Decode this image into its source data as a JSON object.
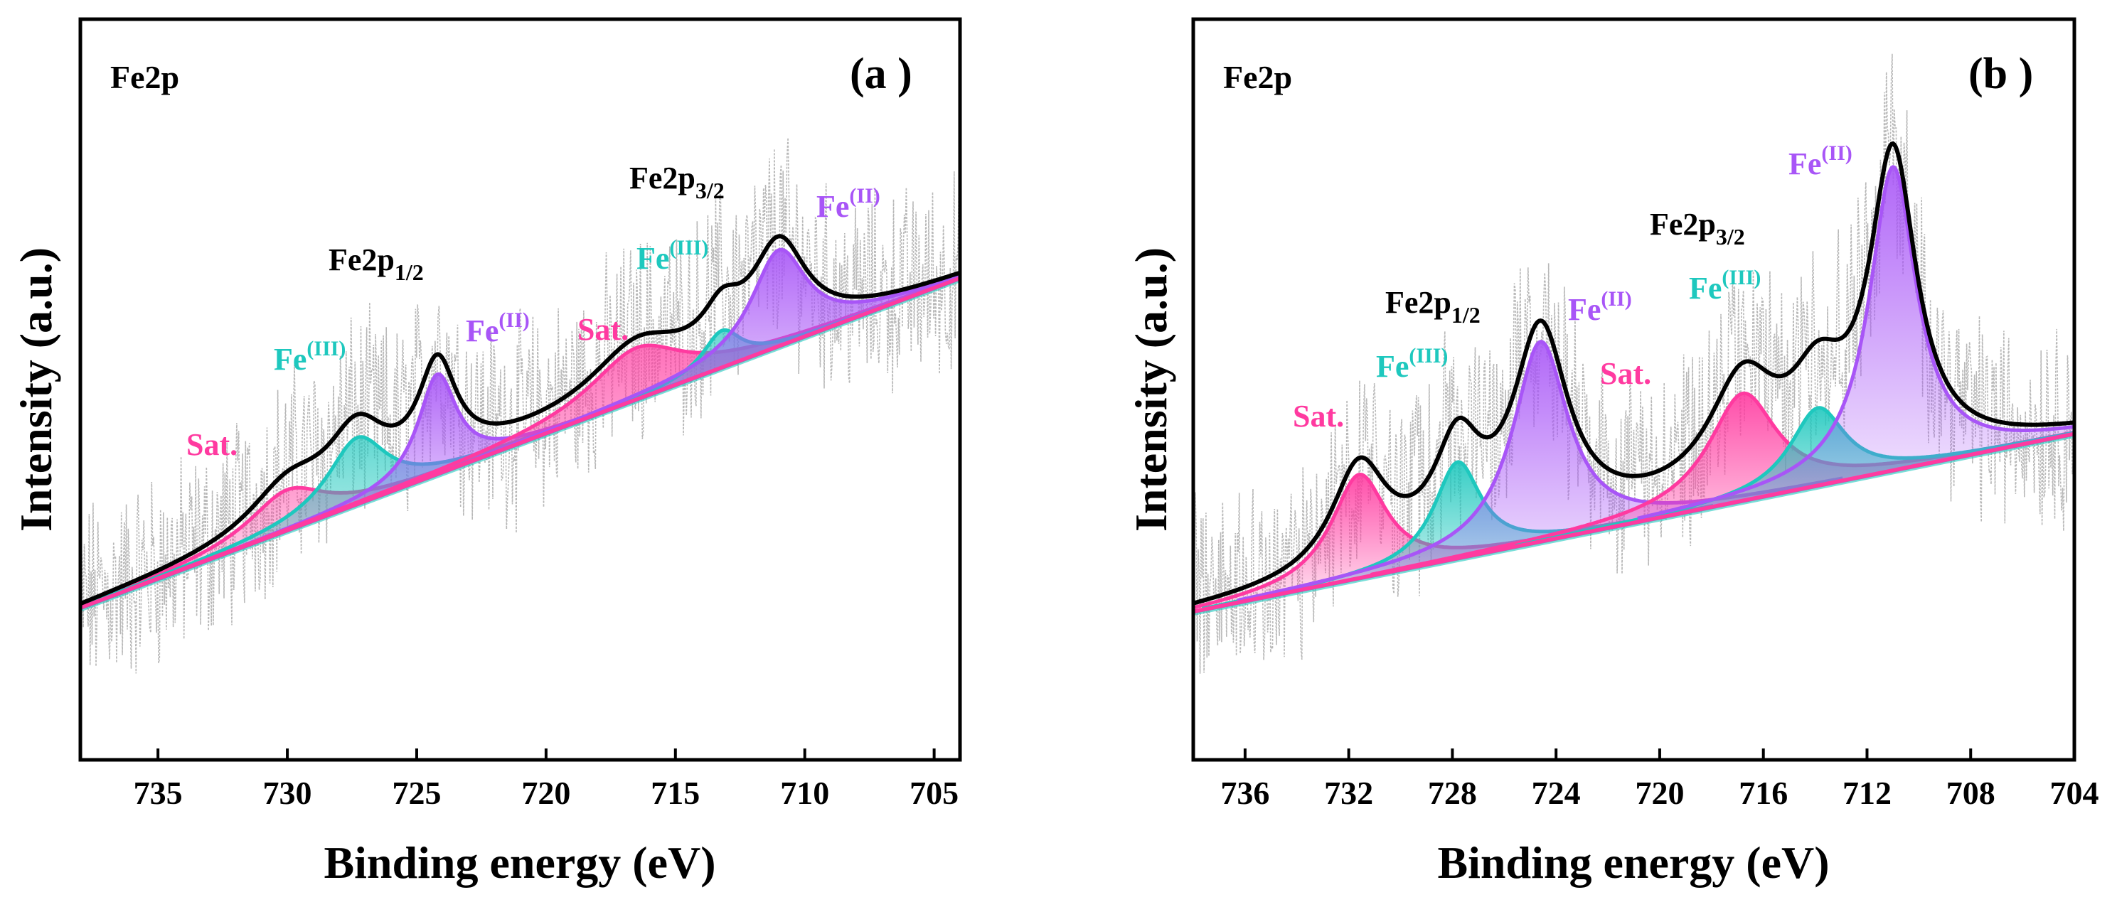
{
  "figure": {
    "panels": [
      "(a )",
      "(b )"
    ]
  },
  "chart_data": [
    {
      "type": "line",
      "panel_label": "(a )",
      "element": "Fe2p",
      "xlabel": "Binding energy (eV)",
      "ylabel": "Intensity (a.u.)",
      "xlim": [
        738,
        704
      ],
      "ylim": [
        0,
        100
      ],
      "x_ticks": [
        735,
        730,
        725,
        720,
        715,
        710,
        705
      ],
      "colors": {
        "sat": "#ff3aa0",
        "fe3": "#1ec8be",
        "fe2": "#a855f7",
        "envelope": "#000000",
        "raw": "#b8b8b8"
      },
      "baseline": {
        "x": [
          738,
          704
        ],
        "y": [
          20.5,
          65.0
        ]
      },
      "peaks": [
        {
          "name": "Sat.",
          "center": 730.0,
          "height": 5.5,
          "width": 1.8
        },
        {
          "name": "Fe(III)",
          "center": 727.3,
          "height": 9.0,
          "width": 1.4
        },
        {
          "name": "Fe(II)",
          "center": 724.2,
          "height": 13.5,
          "width": 0.9
        },
        {
          "name": "Sat.",
          "center": 716.5,
          "height": 7.0,
          "width": 2.2
        },
        {
          "name": "Fe(III)",
          "center": 713.2,
          "height": 5.0,
          "width": 0.9
        },
        {
          "name": "Fe(II)",
          "center": 711.0,
          "height": 13.0,
          "width": 1.3
        }
      ],
      "annotations": [
        {
          "text": "Sat.",
          "sup": "",
          "sub": "",
          "color": "#ff3aa0"
        },
        {
          "text": "Fe",
          "sup": "(III)",
          "sub": "",
          "color": "#1ec8be"
        },
        {
          "text": "Fe2p",
          "sup": "",
          "sub": "1/2",
          "color": "#000000"
        },
        {
          "text": "Fe",
          "sup": "(II)",
          "sub": "",
          "color": "#a855f7"
        },
        {
          "text": "Sat.",
          "sup": "",
          "sub": "",
          "color": "#ff3aa0"
        },
        {
          "text": "Fe",
          "sup": "(III)",
          "sub": "",
          "color": "#1ec8be"
        },
        {
          "text": "Fe2p",
          "sup": "",
          "sub": "3/2",
          "color": "#000000"
        },
        {
          "text": "Fe",
          "sup": "(II)",
          "sub": "",
          "color": "#a855f7"
        }
      ]
    },
    {
      "type": "line",
      "panel_label": "(b )",
      "element": "Fe2p",
      "xlabel": "Binding energy (eV)",
      "ylabel": "Intensity (a.u.)",
      "xlim": [
        738,
        704
      ],
      "ylim": [
        0,
        100
      ],
      "x_ticks": [
        736,
        732,
        728,
        724,
        720,
        716,
        712,
        708,
        704
      ],
      "colors": {
        "sat": "#ff3aa0",
        "fe3": "#1ec8be",
        "fe2": "#a855f7",
        "envelope": "#000000",
        "raw": "#b8b8b8"
      },
      "baseline": {
        "x": [
          738,
          704
        ],
        "y": [
          20.0,
          44.0
        ]
      },
      "peaks": [
        {
          "name": "Sat.",
          "center": 731.6,
          "height": 14.0,
          "width": 1.3
        },
        {
          "name": "Fe(III)",
          "center": 727.8,
          "height": 13.0,
          "width": 1.1
        },
        {
          "name": "Fe(II)",
          "center": 724.6,
          "height": 27.0,
          "width": 1.3
        },
        {
          "name": "Sat.",
          "center": 716.8,
          "height": 14.5,
          "width": 1.6
        },
        {
          "name": "Fe(III)",
          "center": 713.9,
          "height": 10.5,
          "width": 1.3
        },
        {
          "name": "Fe(II)",
          "center": 711.0,
          "height": 41.0,
          "width": 1.1
        }
      ],
      "annotations": [
        {
          "text": "Sat.",
          "sup": "",
          "sub": "",
          "color": "#ff3aa0"
        },
        {
          "text": "Fe",
          "sup": "(III)",
          "sub": "",
          "color": "#1ec8be"
        },
        {
          "text": "Fe2p",
          "sup": "",
          "sub": "1/2",
          "color": "#000000"
        },
        {
          "text": "Fe",
          "sup": "(II)",
          "sub": "",
          "color": "#a855f7"
        },
        {
          "text": "Sat.",
          "sup": "",
          "sub": "",
          "color": "#ff3aa0"
        },
        {
          "text": "Fe",
          "sup": "(III)",
          "sub": "",
          "color": "#1ec8be"
        },
        {
          "text": "Fe2p",
          "sup": "",
          "sub": "3/2",
          "color": "#000000"
        },
        {
          "text": "Fe",
          "sup": "(II)",
          "sub": "",
          "color": "#a855f7"
        }
      ]
    }
  ]
}
